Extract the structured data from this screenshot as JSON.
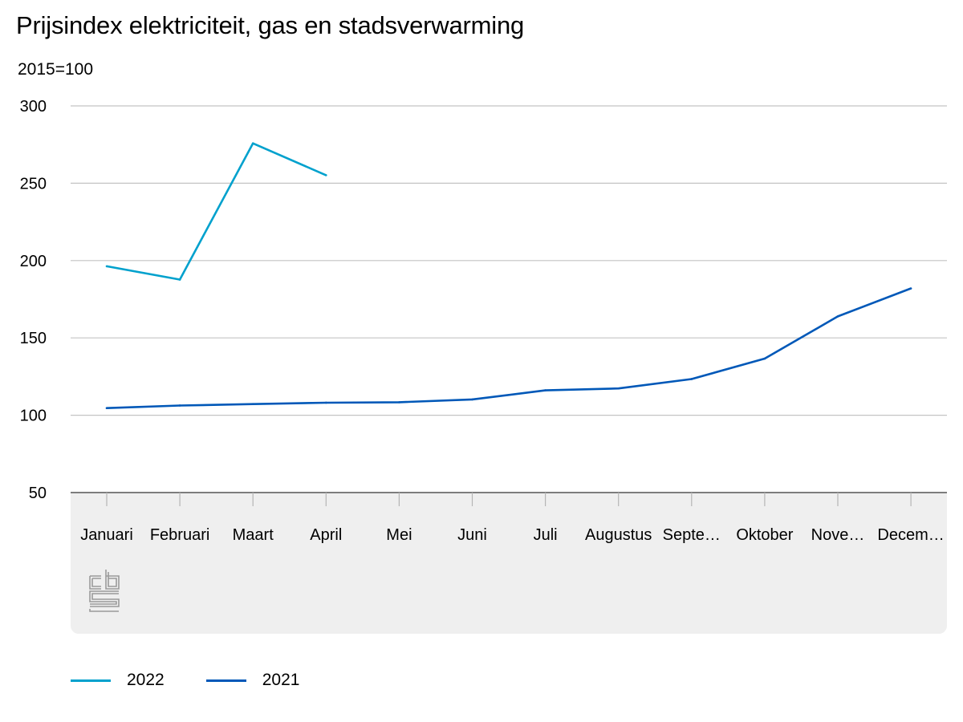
{
  "chart_data": {
    "type": "line",
    "title": "Prijsindex elektriciteit, gas en stadsverwarming",
    "subtitle": "2015=100",
    "categories": [
      "Januari",
      "Februari",
      "Maart",
      "April",
      "Mei",
      "Juni",
      "Juli",
      "Augustus",
      "Septe…",
      "Oktober",
      "Nove…",
      "Decem…"
    ],
    "ylim": [
      50,
      300
    ],
    "yticks": [
      50,
      100,
      150,
      200,
      250,
      300
    ],
    "grid": true,
    "legend_position": "bottom-left",
    "series": [
      {
        "name": "2022",
        "color": "#00a1cd",
        "values": [
          196.3,
          187.7,
          275.8,
          255.2,
          null,
          null,
          null,
          null,
          null,
          null,
          null,
          null
        ]
      },
      {
        "name": "2021",
        "color": "#0058b8",
        "values": [
          104.6,
          106.3,
          107.2,
          108.1,
          108.4,
          110.2,
          116.1,
          117.3,
          123.4,
          136.6,
          163.9,
          182.0
        ]
      }
    ]
  },
  "logo": {
    "name": "cbs-logo",
    "color": "#9a9a9a"
  }
}
